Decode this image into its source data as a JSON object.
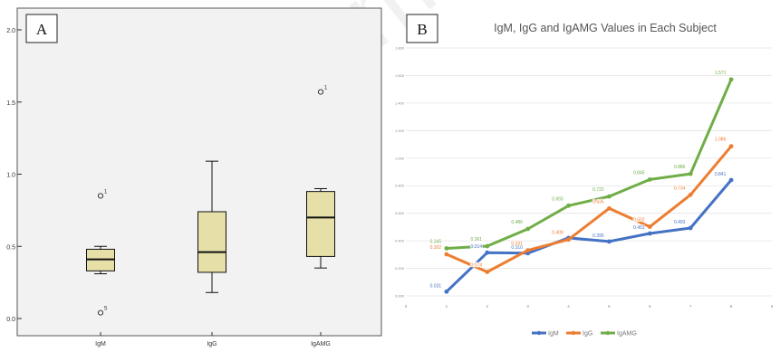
{
  "chart_data": [
    {
      "type": "boxplot",
      "panel_label": "A",
      "title": "",
      "ylim": [
        0,
        2.0
      ],
      "yticks": [
        "0.0",
        "0.5",
        "1.0",
        "1.5",
        "2.0"
      ],
      "categories": [
        "IgM",
        "IgG",
        "IgAMG"
      ],
      "boxes": [
        {
          "name": "IgM",
          "whisker_low": 0.31,
          "q1": 0.33,
          "median": 0.41,
          "q3": 0.48,
          "whisker_high": 0.5,
          "outliers": [
            {
              "value": 0.85,
              "label": "1"
            },
            {
              "value": 0.04,
              "label": "5"
            }
          ]
        },
        {
          "name": "IgG",
          "whisker_low": 0.18,
          "q1": 0.32,
          "median": 0.46,
          "q3": 0.74,
          "whisker_high": 1.09,
          "outliers": []
        },
        {
          "name": "IgAMG",
          "whisker_low": 0.35,
          "q1": 0.43,
          "median": 0.7,
          "q3": 0.88,
          "whisker_high": 0.9,
          "outliers": [
            {
              "value": 1.57,
              "label": "1"
            }
          ]
        }
      ],
      "colors": {
        "box_fill": "#e6dfa7",
        "box_stroke": "#111111",
        "plot_bg": "#f2f2f2"
      }
    },
    {
      "type": "line",
      "panel_label": "B",
      "title": "IgM, IgG and IgAMG Values in Each Subject",
      "x": [
        1,
        2,
        3,
        4,
        5,
        6,
        7,
        8
      ],
      "xticks": [
        "0",
        "1",
        "2",
        "3",
        "4",
        "5",
        "6",
        "7",
        "8",
        "9"
      ],
      "xlim": [
        0,
        9
      ],
      "ylim": [
        0,
        1.8
      ],
      "yticks": [
        "0.000",
        "0.200",
        "0.400",
        "0.600",
        "0.800",
        "1.000",
        "1.200",
        "1.400",
        "1.600",
        "1.800"
      ],
      "series": [
        {
          "name": "IgM",
          "color": "#4472c4",
          "values": [
            0.031,
            0.314,
            0.31,
            0.421,
            0.395,
            0.453,
            0.493,
            0.841
          ],
          "labels": [
            "0.031",
            "0.314",
            "0.310",
            "0.421",
            "0.395",
            "0.453",
            "0.493",
            "0.841"
          ]
        },
        {
          "name": "IgG",
          "color": "#ed7d31",
          "values": [
            0.302,
            0.174,
            0.331,
            0.409,
            0.635,
            0.502,
            0.734,
            1.086
          ],
          "labels": [
            "0.302",
            "0.174",
            "0.331",
            "0.409",
            "0.635",
            "0.502",
            "0.734",
            "1.086"
          ]
        },
        {
          "name": "IgAMG",
          "color": "#70ad47",
          "values": [
            0.345,
            0.361,
            0.486,
            0.655,
            0.722,
            0.845,
            0.886,
            1.571
          ],
          "labels": [
            "0.345",
            "0.361",
            "0.486",
            "0.655",
            "0.722",
            "0.845",
            "0.886",
            "1.571"
          ]
        }
      ],
      "legend_position": "bottom",
      "grid": true
    }
  ],
  "watermark": "Commercial use"
}
